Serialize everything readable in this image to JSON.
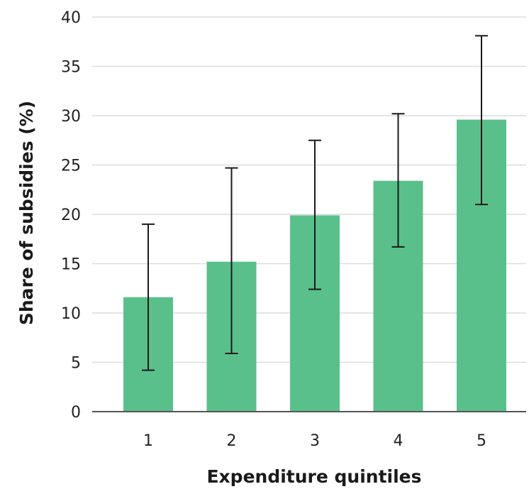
{
  "chart_data": {
    "type": "bar",
    "categories": [
      "1",
      "2",
      "3",
      "4",
      "5"
    ],
    "values": [
      11.6,
      15.2,
      19.9,
      23.4,
      29.6
    ],
    "error_low": [
      4.2,
      5.9,
      12.4,
      16.7,
      21.0
    ],
    "error_high": [
      19.0,
      24.7,
      27.5,
      30.2,
      38.1
    ],
    "xlabel": "Expenditure quintiles",
    "ylabel": "Share of subsidies (%)",
    "ylim": [
      0,
      40
    ],
    "yticks": [
      "0",
      "5",
      "10",
      "15",
      "20",
      "25",
      "30",
      "35",
      "40"
    ],
    "ytick_values": [
      0,
      5,
      10,
      15,
      20,
      25,
      30,
      35,
      40
    ],
    "grid": "horizontal",
    "bar_color": "#5ac08b"
  }
}
